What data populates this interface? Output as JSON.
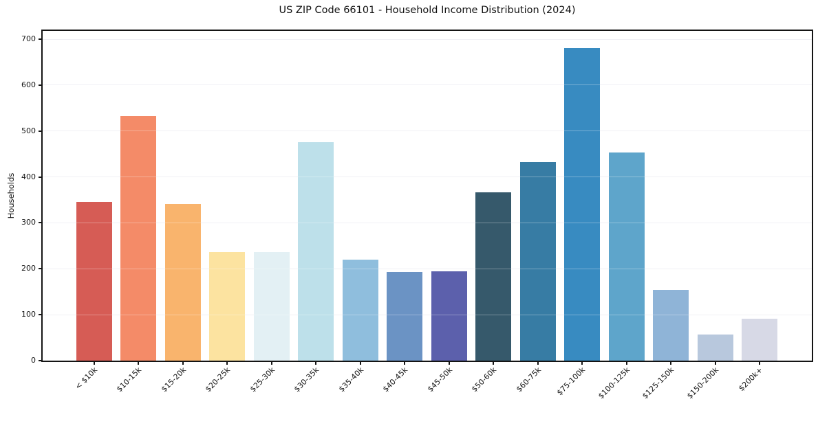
{
  "title": "US ZIP Code 66101 - Household Income Distribution (2024)",
  "chart_data": {
    "type": "bar",
    "title": "US ZIP Code 66101 - Household Income Distribution (2024)",
    "xlabel": "",
    "ylabel": "Households",
    "ylim": [
      0,
      718
    ],
    "yticks": [
      0,
      100,
      200,
      300,
      400,
      500,
      600,
      700
    ],
    "grid": "horizontal-light-gray",
    "legend": "none",
    "categories": [
      "< $10k",
      "$10-15k",
      "$15-20k",
      "$20-25k",
      "$25-30k",
      "$30-35k",
      "$35-40k",
      "$40-45k",
      "$45-50k",
      "$50-60k",
      "$60-75k",
      "$75-100k",
      "$100-125k",
      "$125-150k",
      "$150-200k",
      "$200k+"
    ],
    "values": [
      346,
      532,
      341,
      236,
      236,
      475,
      220,
      193,
      195,
      367,
      432,
      681,
      454,
      154,
      57,
      91
    ],
    "bar_colors": [
      "#d65c55",
      "#f48b68",
      "#f9b46d",
      "#fce3a0",
      "#e3f0f4",
      "#bde0ea",
      "#8fbedd",
      "#6b93c4",
      "#5c60ac",
      "#36596b",
      "#377ca4",
      "#388bc1",
      "#5ea5cb",
      "#8fb4d7",
      "#b8c8dd",
      "#d7d9e6"
    ],
    "axis_color": "#141414",
    "grid_color": "#e9e9f0",
    "background_color": "#ffffff"
  }
}
